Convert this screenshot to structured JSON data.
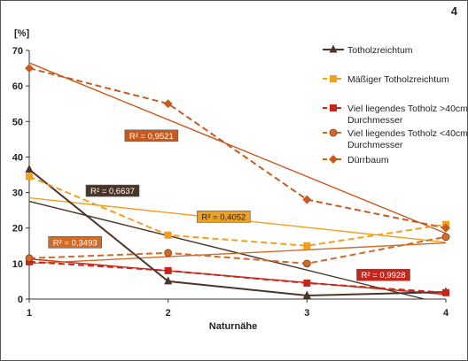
{
  "chart_data": {
    "type": "line",
    "corner_label": "4",
    "ylabel": "[%]",
    "xlabel": "Naturnähe",
    "x": [
      1,
      2,
      3,
      4
    ],
    "xlim": [
      1,
      4
    ],
    "ylim": [
      0,
      70
    ],
    "yticks": [
      0,
      10,
      20,
      30,
      40,
      50,
      60,
      70
    ],
    "grid": false,
    "legend_position": "right",
    "series": [
      {
        "name": "Totholzreichtum",
        "values": [
          36.5,
          5,
          1,
          2
        ],
        "color": "#4a3528",
        "marker": "triangle",
        "dash": "solid",
        "trend": {
          "start": 27.5,
          "end": -1.5,
          "r2": "R² = 0,6637",
          "label_at": [
            1.6,
            30.5
          ]
        }
      },
      {
        "name": "Mäßiger Totholzreichtum",
        "values": [
          34.5,
          18,
          15,
          21
        ],
        "color": "#f0a020",
        "marker": "square",
        "dash": "dashed",
        "trend": {
          "start": 28.5,
          "end": 16,
          "r2": "R² = 0,4052",
          "label_at": [
            2.4,
            23.2
          ]
        }
      },
      {
        "name": "Viel liegendes Totholz >40cm Durchmesser",
        "values": [
          10.5,
          8,
          4.5,
          1.8
        ],
        "color": "#c82418",
        "marker": "square",
        "dash": "dashed",
        "trend": {
          "start": 11.3,
          "end": 1.3,
          "r2": "R² = 0,9928",
          "label_at": [
            3.55,
            6.8
          ]
        }
      },
      {
        "name": "Viel liegendes Totholz <40cm Durchmesser",
        "values": [
          11.5,
          13,
          10,
          17.5
        ],
        "color": "#d26a28",
        "marker": "circle",
        "dash": "dashed",
        "trend": {
          "start": 10,
          "end": 15.8,
          "r2": "R² = 0,3493",
          "label_at": [
            1.33,
            16
          ]
        }
      },
      {
        "name": "Dürrbaum",
        "values": [
          65,
          55,
          28,
          20
        ],
        "color": "#c85a1e",
        "marker": "diamond",
        "dash": "dashed",
        "trend": {
          "start": 66.5,
          "end": 18.5,
          "r2": "R² = 0,9521",
          "label_at": [
            1.88,
            46
          ]
        }
      }
    ]
  }
}
